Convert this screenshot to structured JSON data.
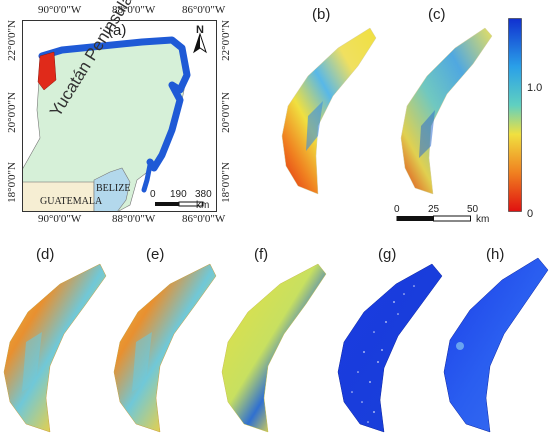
{
  "map_a": {
    "panel_label": "(a)",
    "top_longitudes": [
      "90°0'0\"W",
      "88°0'0\"W",
      "86°0'0\"W"
    ],
    "bottom_longitudes": [
      "90°0'0\"W",
      "88°0'0\"W",
      "86°0'0\"W"
    ],
    "left_latitudes": [
      "22°0'0\"N",
      "20°0'0\"N",
      "18°0'0\"N"
    ],
    "right_latitudes": [
      "22°0'0\"N",
      "20°0'0\"N",
      "18°0'0\"N"
    ],
    "peninsula_label": "Yucatán Peninsula",
    "guatemala_label": "GUATEMALA",
    "belize_label": "BELIZE",
    "north_label": "N",
    "scalebar_ticks": [
      "0",
      "190",
      "380"
    ],
    "scalebar_unit": "km",
    "colors": {
      "land": "#d6f0d8",
      "guatemala": "#f6eed3",
      "belize": "#b3d8ec",
      "coast_band": "#1f5ad6",
      "highlight": "#e02a1a"
    }
  },
  "panels": [
    "(b)",
    "(c)",
    "(d)",
    "(e)",
    "(f)",
    "(g)",
    "(h)"
  ],
  "colorbar": {
    "max_label": "1.0",
    "min_label": "0",
    "colors": [
      "#1030d0",
      "#2aa0e8",
      "#60d0c0",
      "#f0e040",
      "#f08020",
      "#e01010"
    ]
  },
  "scalebar_bc": {
    "ticks": [
      "0",
      "25",
      "50"
    ],
    "unit": "km"
  }
}
